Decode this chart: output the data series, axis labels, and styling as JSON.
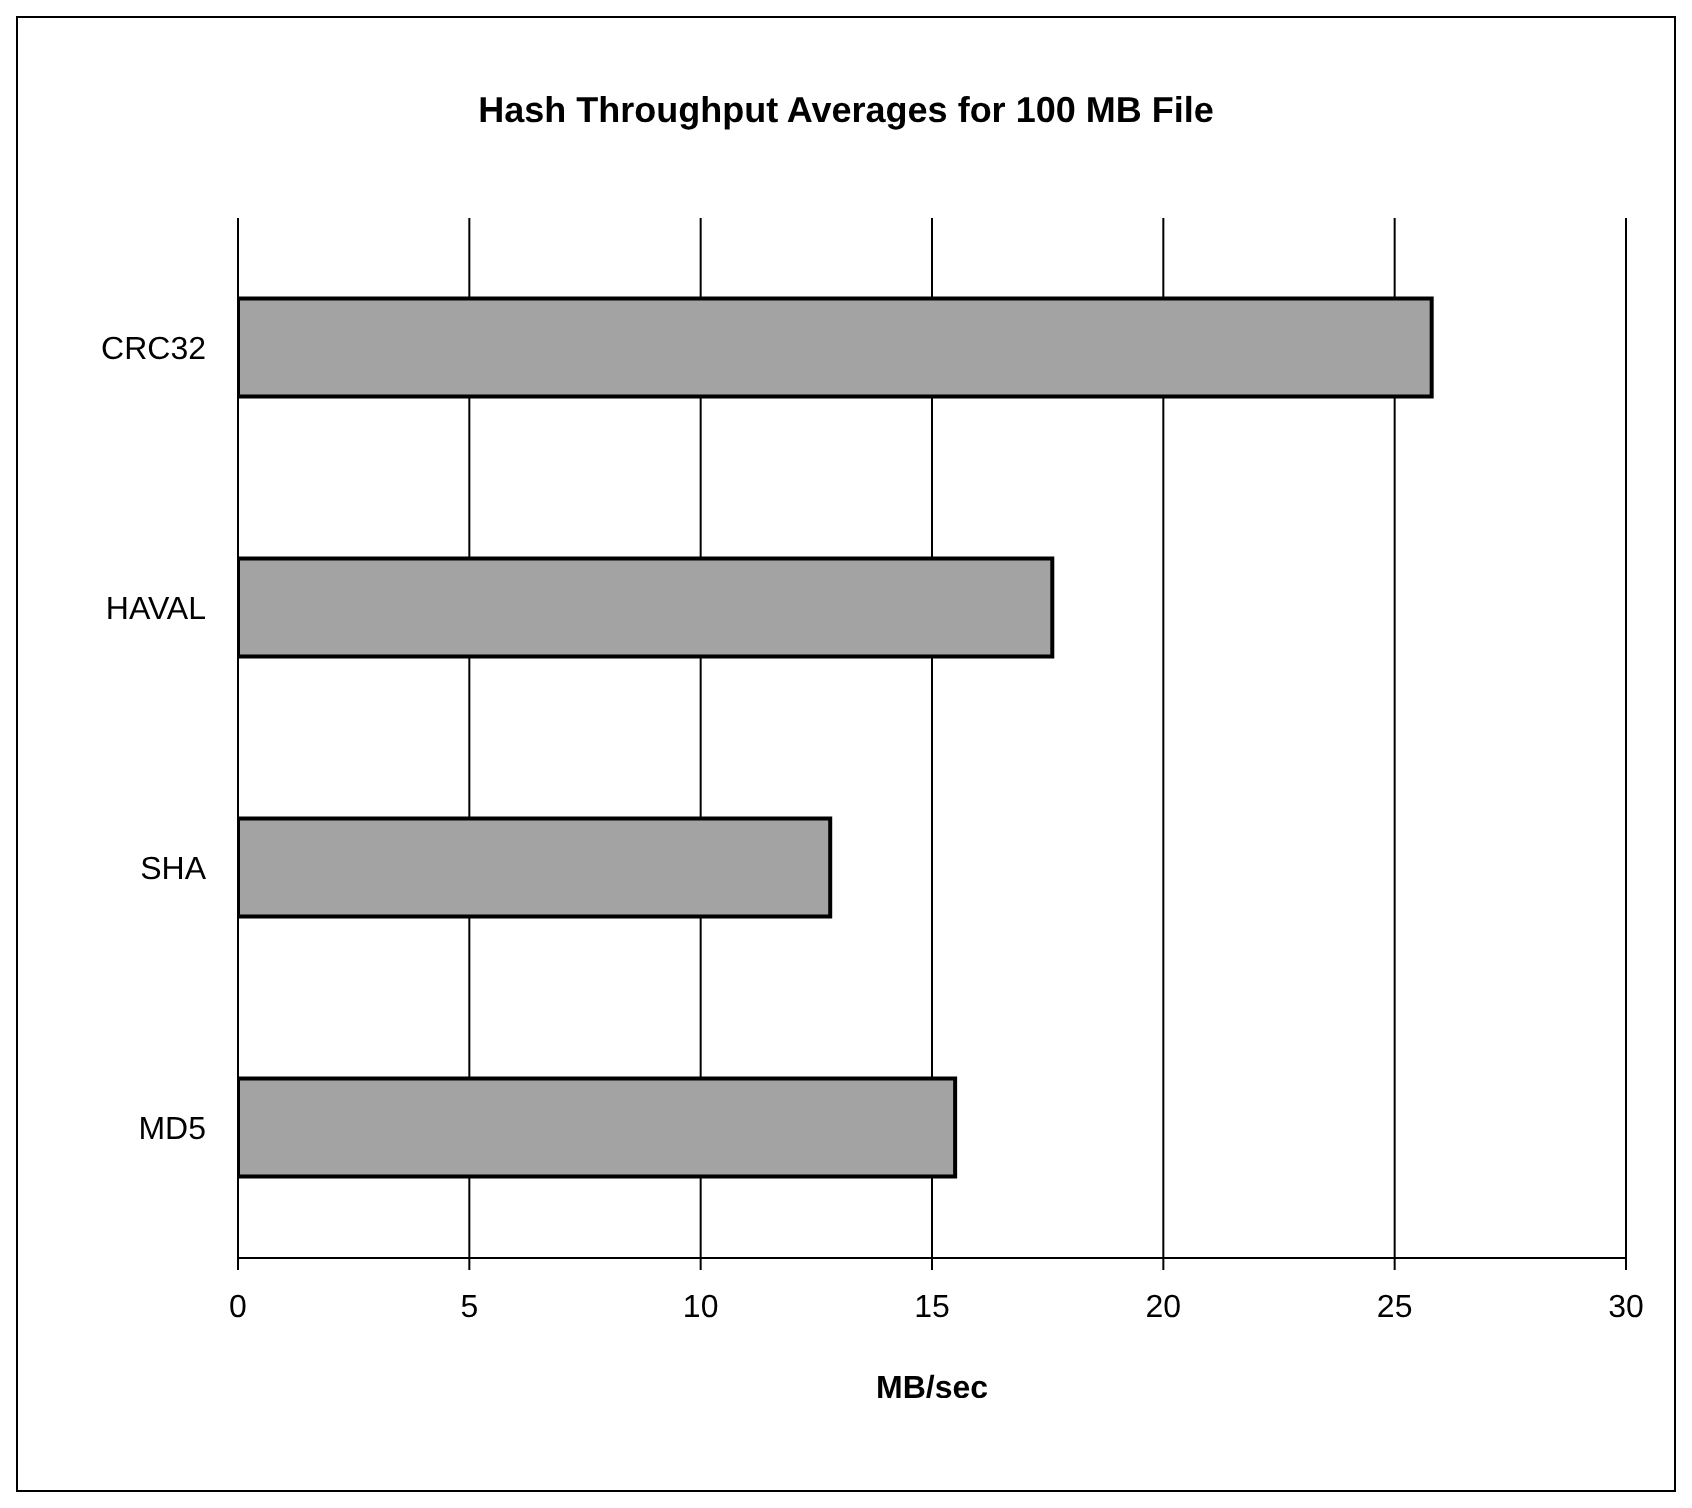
{
  "chart_data": {
    "type": "bar",
    "orientation": "horizontal",
    "title": "Hash Throughput Averages for 100 MB File",
    "xlabel": "MB/sec",
    "categories": [
      "CRC32",
      "HAVAL",
      "SHA",
      "MD5"
    ],
    "values": [
      25.8,
      17.6,
      12.8,
      15.5
    ],
    "color": "#a3a3a3",
    "xlim": [
      0,
      30
    ],
    "xticks": [
      0,
      5,
      10,
      15,
      20,
      25,
      30
    ],
    "grid": "x"
  }
}
